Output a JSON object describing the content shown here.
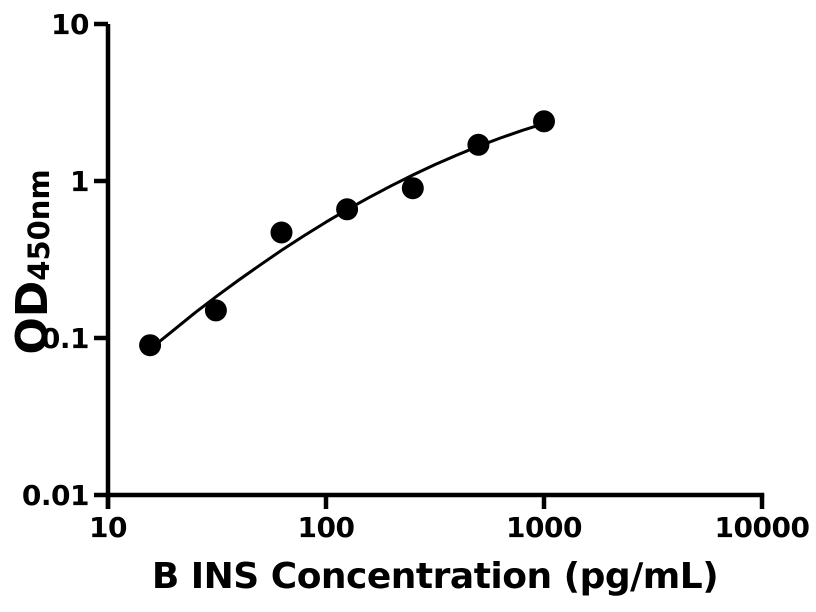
{
  "figure": {
    "xlabel": "B INS Concentration (pg/mL)",
    "ylabel_main": "OD",
    "ylabel_subscript": "450nm",
    "background_color": "#ffffff"
  },
  "chart_data": {
    "type": "scatter",
    "title": "",
    "xlabel": "B INS Concentration (pg/mL)",
    "ylabel": "OD450nm",
    "x_scale": "log10",
    "y_scale": "log10",
    "xlim": [
      10,
      10000
    ],
    "ylim": [
      0.01,
      10
    ],
    "x_tick_labels": [
      "10",
      "100",
      "1000",
      "10000"
    ],
    "y_tick_labels": [
      "0.01",
      "0.1",
      "1",
      "10"
    ],
    "grid": false,
    "legend": "none",
    "marker_style": "filled-circle",
    "marker_color": "#000000",
    "line_color": "#000000",
    "axis_color": "#000000",
    "text_color": "#000000",
    "series": [
      {
        "name": "standard-points",
        "points": [
          {
            "conc_pg_ml": 15.6,
            "od": 0.09
          },
          {
            "conc_pg_ml": 31.25,
            "od": 0.15
          },
          {
            "conc_pg_ml": 62.5,
            "od": 0.47
          },
          {
            "conc_pg_ml": 125,
            "od": 0.66
          },
          {
            "conc_pg_ml": 250,
            "od": 0.9
          },
          {
            "conc_pg_ml": 500,
            "od": 1.7
          },
          {
            "conc_pg_ml": 1000,
            "od": 2.4
          }
        ]
      }
    ],
    "fit_curve": [
      [
        15.6,
        0.085
      ],
      [
        19.95,
        0.112
      ],
      [
        25.1,
        0.145
      ],
      [
        31.6,
        0.185
      ],
      [
        39.8,
        0.234
      ],
      [
        50.1,
        0.293
      ],
      [
        63.1,
        0.365
      ],
      [
        79.4,
        0.449
      ],
      [
        100,
        0.547
      ],
      [
        125.9,
        0.66
      ],
      [
        158.5,
        0.789
      ],
      [
        199.5,
        0.934
      ],
      [
        251,
        1.094
      ],
      [
        316,
        1.271
      ],
      [
        398,
        1.462
      ],
      [
        501,
        1.665
      ],
      [
        631,
        1.878
      ],
      [
        794,
        2.099
      ],
      [
        1000,
        2.322
      ]
    ]
  }
}
